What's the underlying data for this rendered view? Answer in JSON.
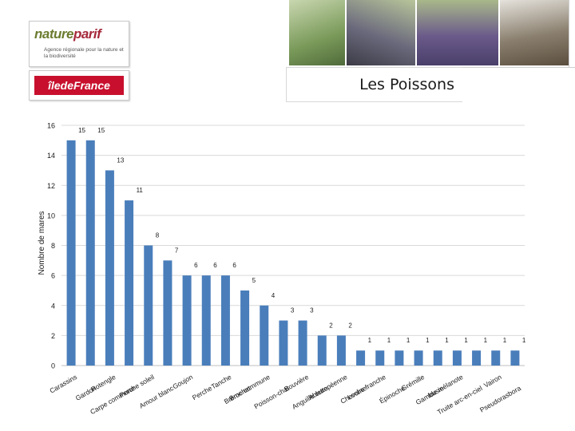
{
  "header": {
    "logo_title_a": "nature",
    "logo_title_b": "parif",
    "logo_subtitle": "Agence régionale pour la nature et la biodiversité",
    "region_logo": "îledeFrance",
    "title": "Les Poissons"
  },
  "photos": [
    {
      "name": "bird-photo",
      "color": "#7a9a5a"
    },
    {
      "name": "mole-photo",
      "color": "#6b6a7d"
    },
    {
      "name": "bluebell-forest-photo",
      "color": "#6a5a8a"
    },
    {
      "name": "fish-river-photo",
      "color": "#8a7f6e"
    }
  ],
  "colors": {
    "bar": "#4a7ebb",
    "axis": "#bfbfbf",
    "grid": "#d9d9d9",
    "text": "#1a1a1a"
  },
  "chart_data": {
    "type": "bar",
    "ylabel": "Nombre de mares",
    "xlabel": "",
    "ylim": [
      0,
      16
    ],
    "yticks": [
      0,
      2,
      4,
      6,
      8,
      10,
      12,
      14,
      16
    ],
    "grid": true,
    "categories": [
      "Carassins",
      "Gardon",
      "Rotengle",
      "Carpe commune",
      "Perche soleil",
      "Amour blanc",
      "Goujon",
      "Perche",
      "Tanche",
      "Brochet",
      "Brème commune",
      "Poisson-chat",
      "Bouvière",
      "Ablette",
      "Anguille européenne",
      "Chevaine",
      "Loche franche",
      "Épinoche",
      "Grémille",
      "Gambusie",
      "Ide mélanote",
      "Truite arc-en-ciel",
      "Vairon",
      "Pseudorasbora"
    ],
    "display_labels": [
      "Carassins",
      "Gardon",
      "Rotengle",
      "Carpe commune",
      "Perche soleil",
      "Amour blanc",
      "Goujon",
      "Perche",
      "Tanche",
      "Brochet",
      "Brème commune",
      "Poisson-chat",
      "Bouvière",
      "Ablette",
      "Anguille européenne",
      "Chevaine",
      "Loche franche",
      "Épinoche",
      "Grémille",
      "Gambusie",
      "Ide mélanote",
      "Truite arc-en-ciel",
      "Vairon",
      "Pseudorasbora"
    ],
    "values": [
      15,
      15,
      13,
      11,
      8,
      7,
      6,
      6,
      6,
      5,
      4,
      3,
      3,
      2,
      2,
      1,
      1,
      1,
      1,
      1,
      1,
      1,
      1,
      1
    ]
  }
}
